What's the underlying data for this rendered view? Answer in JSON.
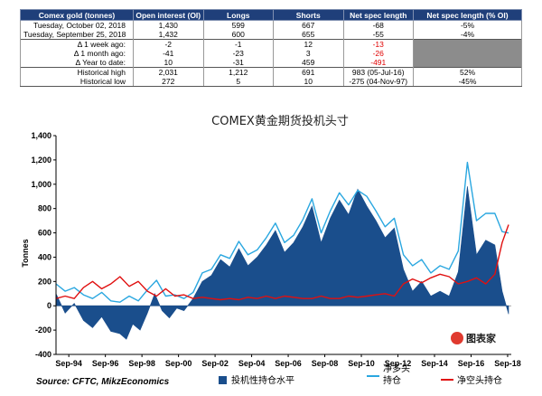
{
  "table": {
    "headers": [
      "Comex gold (tonnes)",
      "Open interest (OI)",
      "Longs",
      "Shorts",
      "Net spec length",
      "Net spec length (% OI)"
    ],
    "rows": [
      {
        "cells": [
          "Tuesday, October 02, 2018",
          "1,430",
          "599",
          "667",
          "-68",
          "-5%"
        ],
        "red": [],
        "grey": false
      },
      {
        "cells": [
          "Tuesday, September 25, 2018",
          "1,432",
          "600",
          "655",
          "-55",
          "-4%"
        ],
        "red": [],
        "grey": false
      },
      {
        "cells": [
          "Δ 1 week ago:",
          "-2",
          "-1",
          "12",
          "-13",
          ""
        ],
        "red": [
          4
        ],
        "grey": true
      },
      {
        "cells": [
          "Δ 1 month ago:",
          "-41",
          "-23",
          "3",
          "-26",
          ""
        ],
        "red": [
          4
        ],
        "grey": true
      },
      {
        "cells": [
          "Δ Year to date:",
          "10",
          "-31",
          "459",
          "-491",
          ""
        ],
        "red": [
          4
        ],
        "grey": true
      },
      {
        "cells": [
          "Historical high",
          "2,031",
          "1,212",
          "691",
          "983  (05-Jul-16)",
          "52%"
        ],
        "red": [],
        "grey": false
      },
      {
        "cells": [
          "Historical low",
          "272",
          "5",
          "10",
          "-275  (04-Nov-97)",
          "-45%"
        ],
        "red": [],
        "grey": false
      }
    ]
  },
  "chart_data": {
    "type": "area",
    "title": "COMEX黄金期货投机头寸",
    "ylabel": "Tonnes",
    "ylim": [
      -400,
      1400
    ],
    "yticks": [
      "-400",
      "-200",
      "0",
      "200",
      "400",
      "600",
      "800",
      "1,000",
      "1,200",
      "1,400"
    ],
    "xlim": [
      1994.0,
      2018.9
    ],
    "xtick_labels": [
      "Sep-94",
      "Sep-96",
      "Sep-98",
      "Sep-00",
      "Sep-02",
      "Sep-04",
      "Sep-06",
      "Sep-08",
      "Sep-10",
      "Sep-12",
      "Sep-14",
      "Sep-16",
      "Sep-18"
    ],
    "xtick_years": [
      1994.7,
      1996.7,
      1998.7,
      2000.7,
      2002.7,
      2004.7,
      2006.7,
      2008.7,
      2010.7,
      2012.7,
      2014.7,
      2016.7,
      2018.7
    ],
    "series": [
      {
        "name": "投机性持仓水平",
        "kind": "area",
        "color": "#1a4e8c",
        "x": [
          1994.0,
          1994.5,
          1995.0,
          1995.5,
          1996.0,
          1996.5,
          1997.0,
          1997.5,
          1997.85,
          1998.2,
          1998.6,
          1999.0,
          1999.4,
          1999.8,
          2000.2,
          2000.6,
          2001.0,
          2001.5,
          2002.0,
          2002.5,
          2003.0,
          2003.5,
          2004.0,
          2004.5,
          2005.0,
          2005.5,
          2006.0,
          2006.5,
          2007.0,
          2007.5,
          2008.0,
          2008.5,
          2009.0,
          2009.5,
          2010.0,
          2010.5,
          2011.0,
          2011.5,
          2012.0,
          2012.5,
          2013.0,
          2013.5,
          2014.0,
          2014.5,
          2015.0,
          2015.5,
          2016.0,
          2016.5,
          2017.0,
          2017.5,
          2018.0,
          2018.4,
          2018.75
        ],
        "y": [
          100,
          -60,
          20,
          -120,
          -180,
          -90,
          -210,
          -230,
          -275,
          -150,
          -200,
          -60,
          100,
          -40,
          -100,
          -20,
          -40,
          60,
          200,
          250,
          380,
          320,
          470,
          330,
          400,
          500,
          620,
          440,
          520,
          650,
          820,
          520,
          720,
          870,
          750,
          960,
          820,
          700,
          560,
          640,
          300,
          120,
          200,
          80,
          120,
          80,
          280,
          983,
          420,
          540,
          500,
          120,
          -68
        ]
      },
      {
        "name": "净多头持仓",
        "kind": "line",
        "color": "#2aa7e0",
        "x": [
          1994.0,
          1994.5,
          1995.0,
          1995.5,
          1996.0,
          1996.5,
          1997.0,
          1997.5,
          1998.0,
          1998.5,
          1999.0,
          1999.5,
          2000.0,
          2000.5,
          2001.0,
          2001.5,
          2002.0,
          2002.5,
          2003.0,
          2003.5,
          2004.0,
          2004.5,
          2005.0,
          2005.5,
          2006.0,
          2006.5,
          2007.0,
          2007.5,
          2008.0,
          2008.5,
          2009.0,
          2009.5,
          2010.0,
          2010.5,
          2011.0,
          2011.5,
          2012.0,
          2012.5,
          2013.0,
          2013.5,
          2014.0,
          2014.5,
          2015.0,
          2015.5,
          2016.0,
          2016.5,
          2017.0,
          2017.5,
          2018.0,
          2018.4,
          2018.75
        ],
        "y": [
          180,
          120,
          150,
          90,
          60,
          110,
          40,
          30,
          80,
          40,
          130,
          210,
          80,
          90,
          60,
          110,
          270,
          300,
          420,
          390,
          530,
          420,
          460,
          560,
          680,
          520,
          580,
          710,
          880,
          600,
          780,
          930,
          830,
          950,
          900,
          780,
          650,
          720,
          420,
          330,
          380,
          270,
          330,
          300,
          450,
          1180,
          700,
          760,
          760,
          610,
          599
        ]
      },
      {
        "name": "净空头持仓",
        "kind": "line",
        "color": "#e01010",
        "x": [
          1994.0,
          1994.5,
          1995.0,
          1995.5,
          1996.0,
          1996.5,
          1997.0,
          1997.5,
          1998.0,
          1998.5,
          1999.0,
          1999.5,
          2000.0,
          2000.5,
          2001.0,
          2001.5,
          2002.0,
          2002.5,
          2003.0,
          2003.5,
          2004.0,
          2004.5,
          2005.0,
          2005.5,
          2006.0,
          2006.5,
          2007.0,
          2007.5,
          2008.0,
          2008.5,
          2009.0,
          2009.5,
          2010.0,
          2010.5,
          2011.0,
          2011.5,
          2012.0,
          2012.5,
          2013.0,
          2013.5,
          2014.0,
          2014.5,
          2015.0,
          2015.5,
          2016.0,
          2016.5,
          2017.0,
          2017.5,
          2018.0,
          2018.4,
          2018.75
        ],
        "y": [
          60,
          80,
          60,
          150,
          200,
          140,
          180,
          240,
          160,
          200,
          120,
          80,
          140,
          80,
          90,
          60,
          70,
          60,
          50,
          60,
          50,
          70,
          60,
          80,
          60,
          80,
          70,
          60,
          60,
          80,
          60,
          60,
          80,
          70,
          80,
          90,
          100,
          80,
          180,
          220,
          190,
          230,
          260,
          240,
          180,
          200,
          230,
          180,
          260,
          520,
          667
        ]
      }
    ],
    "legend": [
      "投机性持仓水平",
      "净多头\n持仓",
      "净空头持仓"
    ],
    "source": "Source: CFTC, MikzEconomics",
    "logo_text": "图表家"
  }
}
